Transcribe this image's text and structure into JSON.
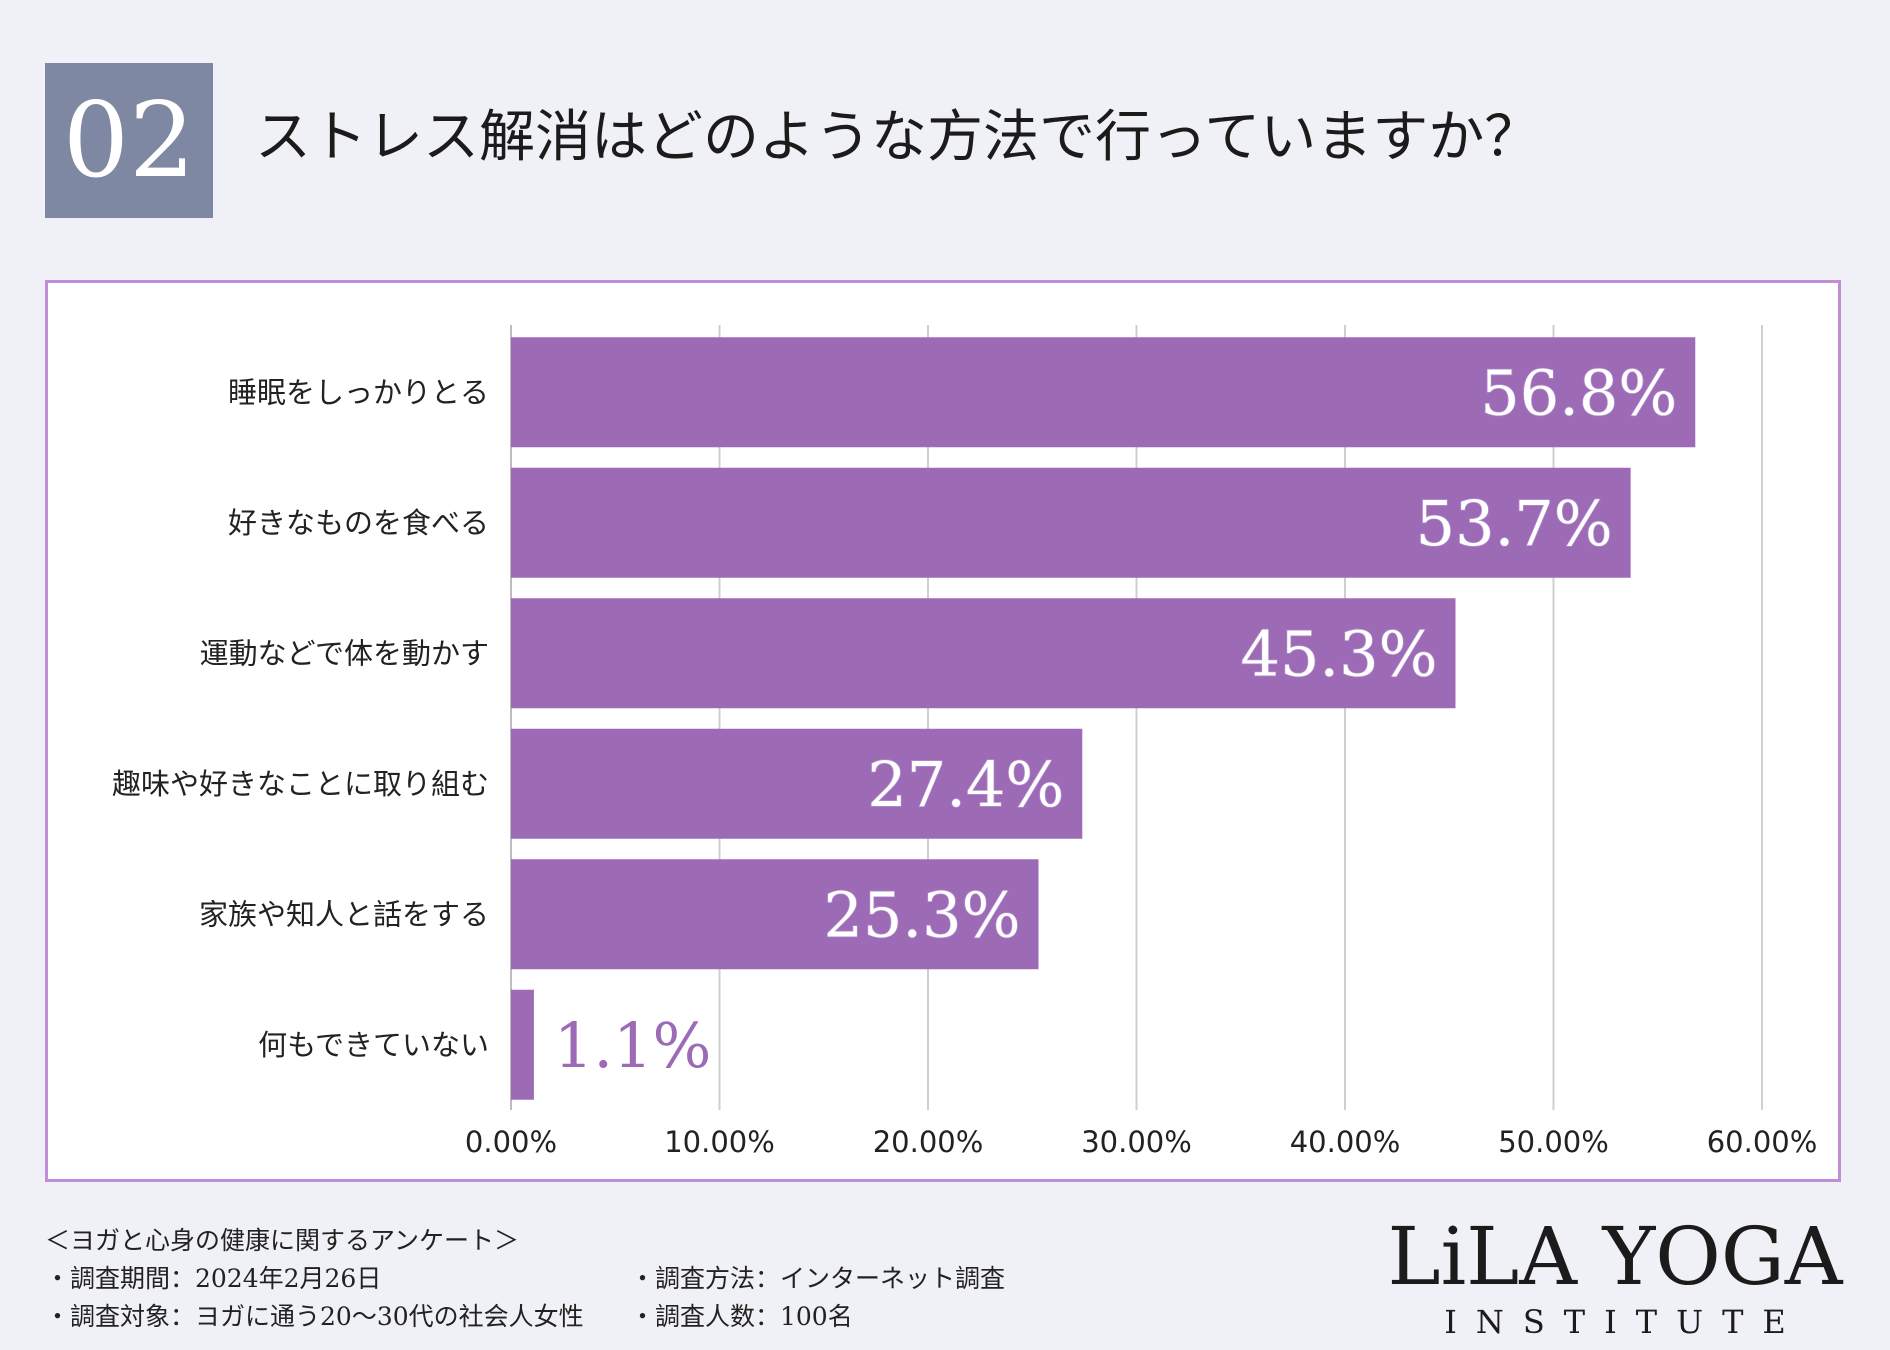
{
  "question_number": "02",
  "title": "ストレス解消はどのような方法で行っていますか？",
  "chart_data": {
    "type": "bar",
    "orientation": "horizontal",
    "categories": [
      "睡眠をしっかりとる",
      "好きなものを食べる",
      "運動などで体を動かす",
      "趣味や好きなことに取り組む",
      "家族や知人と話をする",
      "何もできていない"
    ],
    "values": [
      56.8,
      53.7,
      45.3,
      27.4,
      25.3,
      1.1
    ],
    "value_labels": [
      "56.8%",
      "53.7%",
      "45.3%",
      "27.4%",
      "25.3%",
      "1.1%"
    ],
    "xlim": [
      0,
      60
    ],
    "ticks": [
      0,
      10,
      20,
      30,
      40,
      50,
      60
    ],
    "tick_labels": [
      "0.00%",
      "10.00%",
      "20.00%",
      "30.00%",
      "40.00%",
      "50.00%",
      "60.00%"
    ],
    "grid": true,
    "bar_color": "#9d6bb5",
    "label_outline_color": "#b38ccf"
  },
  "footer": {
    "survey_name": "＜ヨガと心身の健康に関するアンケート＞",
    "period": "・調査期間：2024年2月26日",
    "method": "・調査方法：インターネット調査",
    "target": "・調査対象：ヨガに通う20〜30代の社会人女性",
    "count": "・調査人数：100名"
  },
  "logo": {
    "main": "LiLA YOGA",
    "sub": "INSTITUTE"
  }
}
